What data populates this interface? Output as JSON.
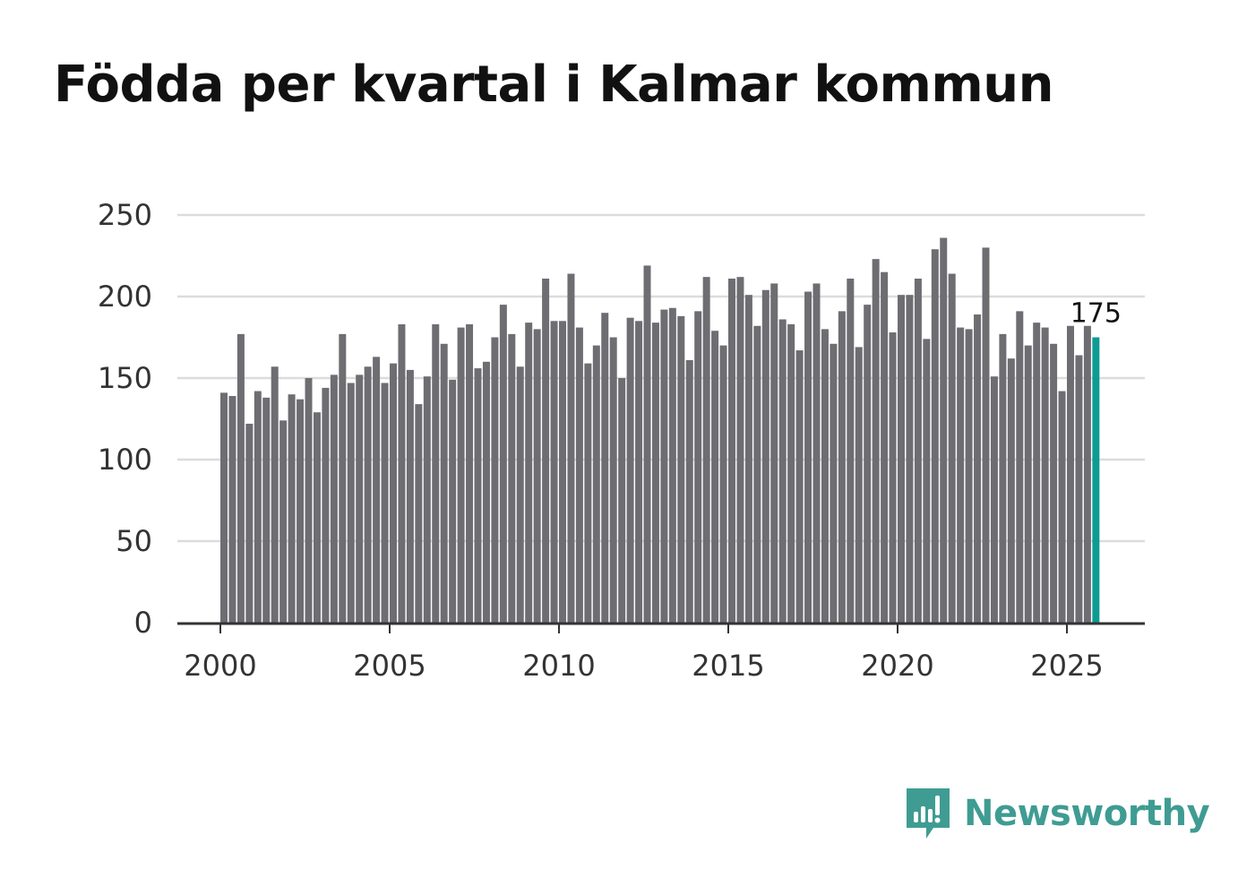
{
  "brand": {
    "name": "Newsworthy",
    "color": "#3f9c93"
  },
  "chart_data": {
    "type": "bar",
    "title": "Födda per kvartal i Kalmar kommun",
    "xlabel": "",
    "ylabel": "",
    "ylim": [
      0,
      250
    ],
    "yticks": [
      0,
      50,
      100,
      150,
      200,
      250
    ],
    "xticks": [
      "2000",
      "2005",
      "2010",
      "2015",
      "2020",
      "2025"
    ],
    "grid": true,
    "bar_color": "#6e6d72",
    "highlight_color": "#0e9b93",
    "last_value_label": "175",
    "categories": [
      "2000 Q1",
      "2000 Q2",
      "2000 Q3",
      "2000 Q4",
      "2001 Q1",
      "2001 Q2",
      "2001 Q3",
      "2001 Q4",
      "2002 Q1",
      "2002 Q2",
      "2002 Q3",
      "2002 Q4",
      "2003 Q1",
      "2003 Q2",
      "2003 Q3",
      "2003 Q4",
      "2004 Q1",
      "2004 Q2",
      "2004 Q3",
      "2004 Q4",
      "2005 Q1",
      "2005 Q2",
      "2005 Q3",
      "2005 Q4",
      "2006 Q1",
      "2006 Q2",
      "2006 Q3",
      "2006 Q4",
      "2007 Q1",
      "2007 Q2",
      "2007 Q3",
      "2007 Q4",
      "2008 Q1",
      "2008 Q2",
      "2008 Q3",
      "2008 Q4",
      "2009 Q1",
      "2009 Q2",
      "2009 Q3",
      "2009 Q4",
      "2010 Q1",
      "2010 Q2",
      "2010 Q3",
      "2010 Q4",
      "2011 Q1",
      "2011 Q2",
      "2011 Q3",
      "2011 Q4",
      "2012 Q1",
      "2012 Q2",
      "2012 Q3",
      "2012 Q4",
      "2013 Q1",
      "2013 Q2",
      "2013 Q3",
      "2013 Q4",
      "2014 Q1",
      "2014 Q2",
      "2014 Q3",
      "2014 Q4",
      "2015 Q1",
      "2015 Q2",
      "2015 Q3",
      "2015 Q4",
      "2016 Q1",
      "2016 Q2",
      "2016 Q3",
      "2016 Q4",
      "2017 Q1",
      "2017 Q2",
      "2017 Q3",
      "2017 Q4",
      "2018 Q1",
      "2018 Q2",
      "2018 Q3",
      "2018 Q4",
      "2019 Q1",
      "2019 Q2",
      "2019 Q3",
      "2019 Q4",
      "2020 Q1",
      "2020 Q2",
      "2020 Q3",
      "2020 Q4",
      "2021 Q1",
      "2021 Q2",
      "2021 Q3",
      "2021 Q4",
      "2022 Q1",
      "2022 Q2",
      "2022 Q3",
      "2022 Q4",
      "2023 Q1",
      "2023 Q2",
      "2023 Q3",
      "2023 Q4",
      "2024 Q1",
      "2024 Q2",
      "2024 Q3",
      "2024 Q4",
      "2025 Q1",
      "2025 Q2",
      "2025 Q3",
      "2025 Q4"
    ],
    "values": [
      141,
      139,
      177,
      122,
      142,
      138,
      157,
      124,
      140,
      137,
      150,
      129,
      144,
      152,
      177,
      147,
      152,
      157,
      163,
      147,
      159,
      183,
      155,
      134,
      151,
      183,
      171,
      149,
      181,
      183,
      156,
      160,
      175,
      195,
      177,
      157,
      184,
      180,
      211,
      185,
      185,
      214,
      181,
      159,
      170,
      190,
      175,
      150,
      187,
      185,
      219,
      184,
      192,
      193,
      188,
      161,
      191,
      212,
      179,
      170,
      211,
      212,
      201,
      182,
      204,
      208,
      186,
      183,
      167,
      203,
      208,
      180,
      171,
      191,
      211,
      169,
      195,
      223,
      215,
      178,
      201,
      201,
      211,
      174,
      229,
      236,
      214,
      181,
      180,
      189,
      230,
      151,
      177,
      162,
      191,
      170,
      184,
      181,
      171,
      142,
      182,
      164,
      182,
      175
    ]
  }
}
